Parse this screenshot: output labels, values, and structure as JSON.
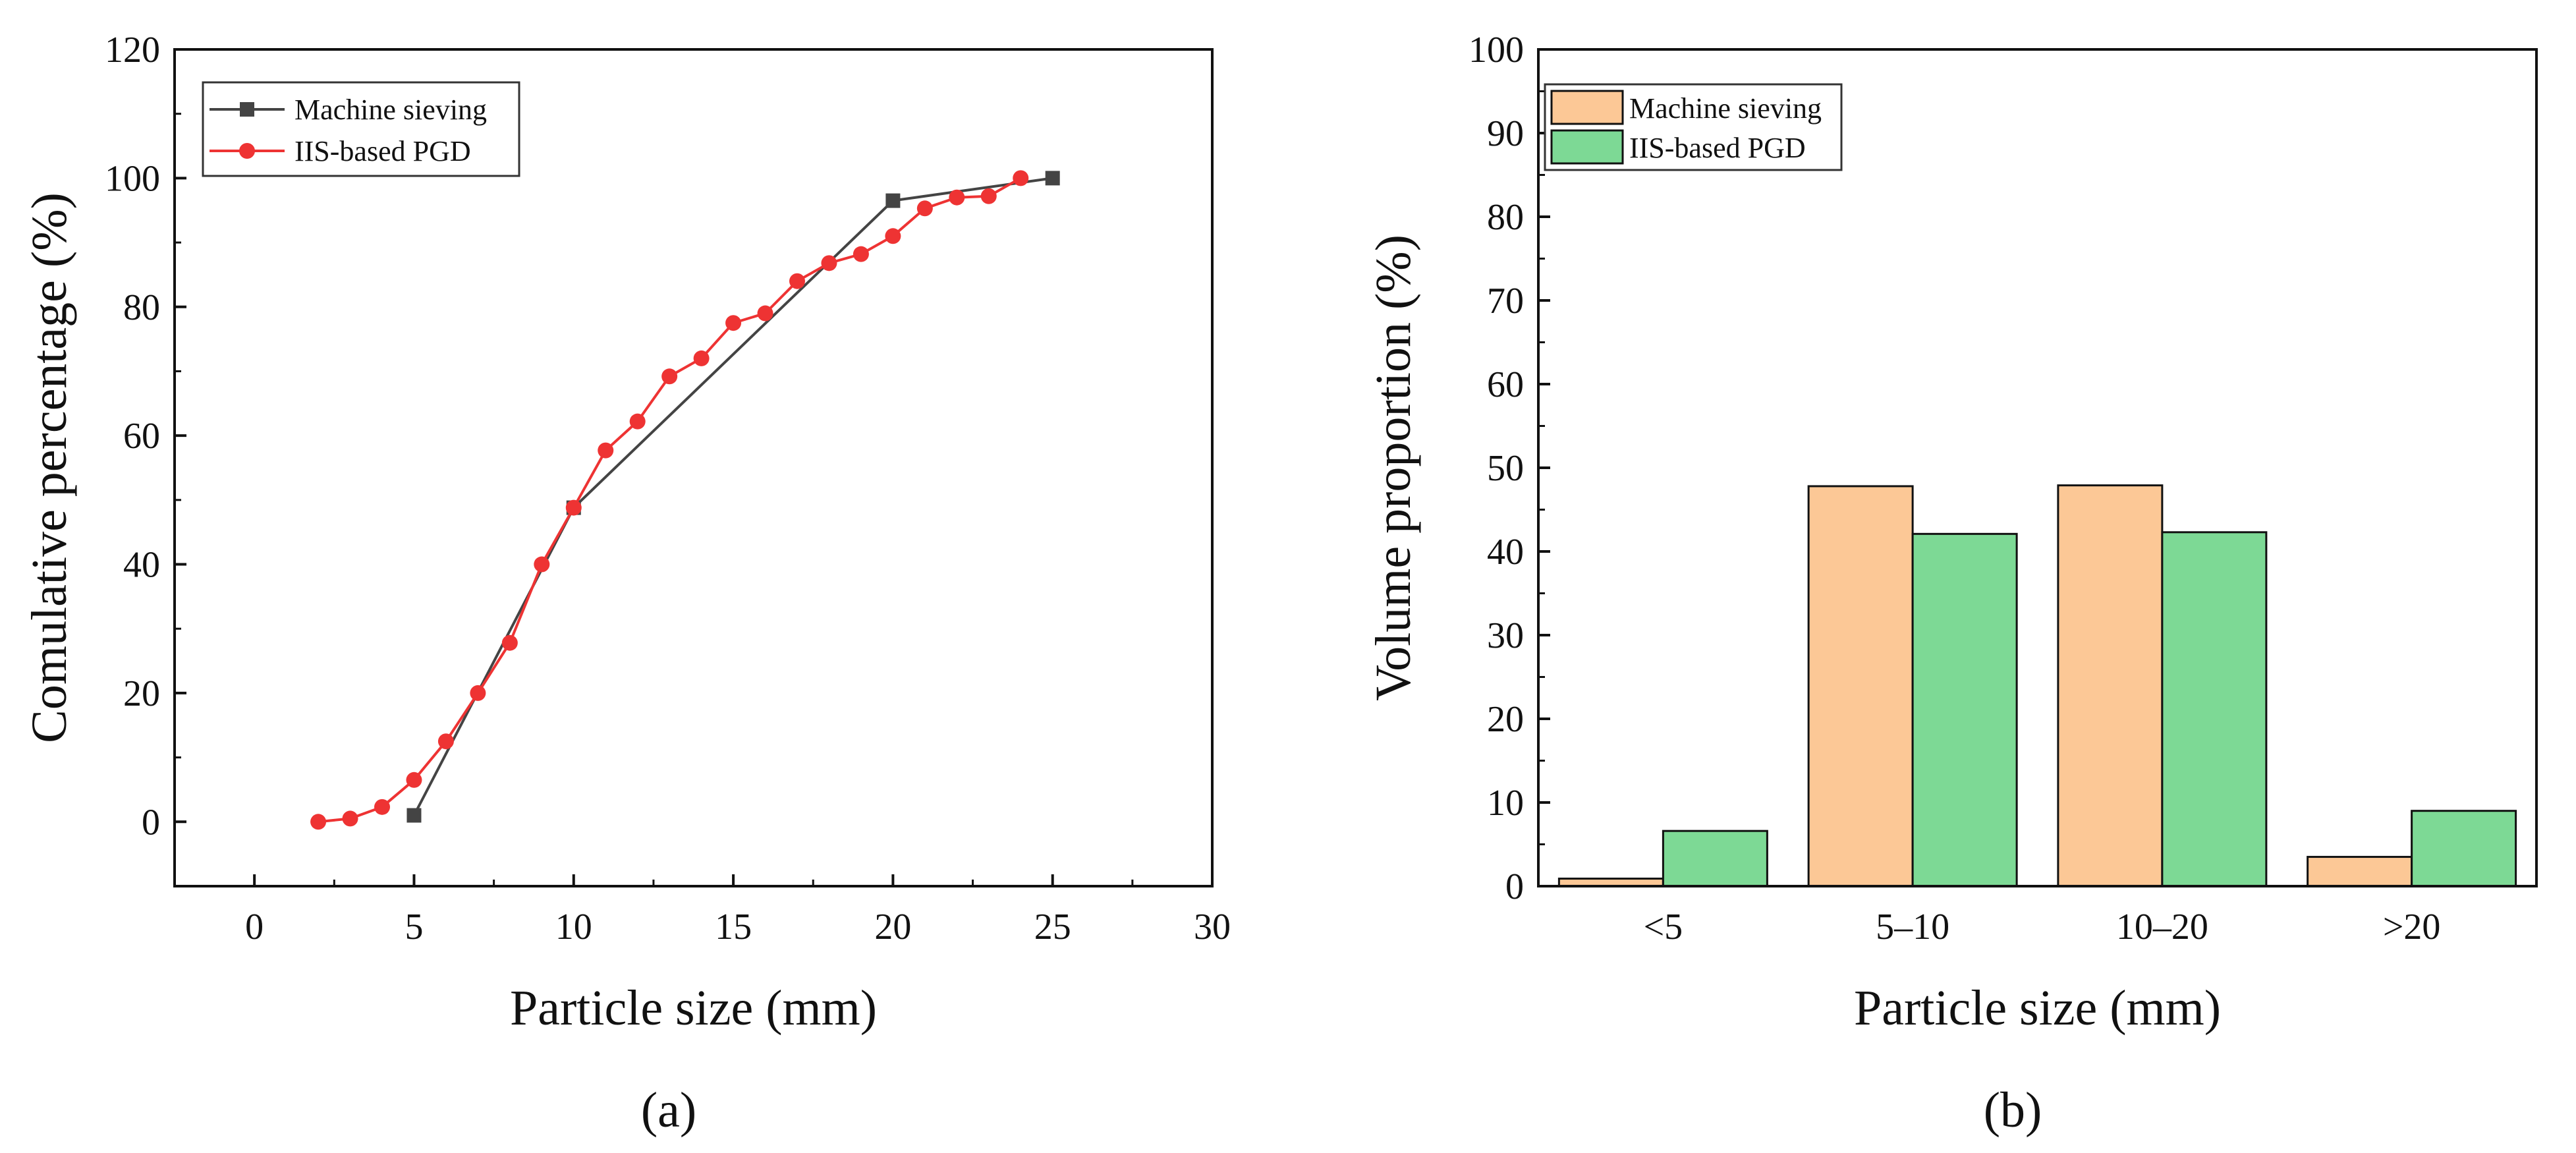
{
  "chart_data": [
    {
      "type": "line",
      "panel_label": "(a)",
      "xlabel": "Particle size (mm)",
      "ylabel": "Comulative percentage (%)",
      "xlim": [
        -2.5,
        30
      ],
      "ylim": [
        -10,
        120
      ],
      "xticks": [
        0,
        5,
        10,
        15,
        20,
        25,
        30
      ],
      "yticks": [
        0,
        20,
        40,
        60,
        80,
        100,
        120
      ],
      "legend_position": "top-left",
      "series": [
        {
          "name": "Machine sieving",
          "color": "#444444",
          "marker": "square",
          "x": [
            5,
            10,
            20,
            25
          ],
          "y": [
            1,
            48.8,
            96.5,
            100
          ]
        },
        {
          "name": "IIS-based PGD",
          "color": "#ee3333",
          "marker": "circle",
          "x": [
            2,
            3,
            4,
            5,
            6,
            7,
            8,
            9,
            10,
            11,
            12,
            13,
            14,
            15,
            16,
            17,
            18,
            19,
            20,
            21,
            22,
            23,
            24
          ],
          "y": [
            0,
            0.5,
            2.3,
            6.5,
            12.5,
            20,
            27.8,
            40,
            48.8,
            57.7,
            62.2,
            69.2,
            72,
            77.5,
            79,
            84,
            86.8,
            88.2,
            91,
            95.3,
            97,
            97.2,
            100
          ]
        }
      ]
    },
    {
      "type": "bar",
      "panel_label": "(b)",
      "xlabel": "Particle size (mm)",
      "ylabel": "Volume proportion (%)",
      "ylim": [
        0,
        100
      ],
      "yticks": [
        0,
        10,
        20,
        30,
        40,
        50,
        60,
        70,
        80,
        90,
        100
      ],
      "categories": [
        "<5",
        "5–10",
        "10–20",
        ">20"
      ],
      "legend_position": "top-left",
      "series": [
        {
          "name": "Machine sieving",
          "color": "#fcc896",
          "values": [
            0.9,
            47.8,
            47.9,
            3.5
          ]
        },
        {
          "name": "IIS-based PGD",
          "color": "#7dd995",
          "values": [
            6.6,
            42.1,
            42.3,
            9
          ]
        }
      ]
    }
  ]
}
